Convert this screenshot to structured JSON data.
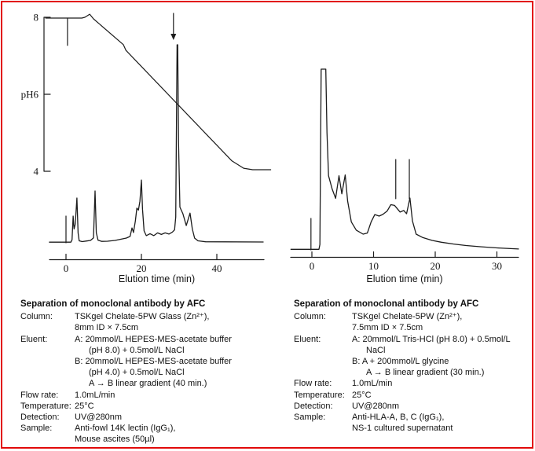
{
  "colors": {
    "frame_border": "#e20a0a",
    "trace": "#1c1c1c",
    "text": "#111111"
  },
  "chart_data": [
    {
      "name": "left-chromatogram",
      "type": "line",
      "xlabel": "Elution time (min)",
      "x_ticks": [
        0,
        20,
        40
      ],
      "x_range": [
        -4.4,
        52.5
      ],
      "grid": false,
      "uv_trace": {
        "name": "UV@280nm detector signal",
        "y_unit": "relative intensity (100 = tallest peak)",
        "ylim": [
          0,
          105
        ],
        "points": [
          [
            -4.4,
            0.3
          ],
          [
            1.3,
            0.3
          ],
          [
            1.6,
            1.5
          ],
          [
            1.9,
            13.5
          ],
          [
            2.15,
            7
          ],
          [
            2.45,
            9.5
          ],
          [
            2.9,
            22.6
          ],
          [
            3.2,
            5
          ],
          [
            3.5,
            1
          ],
          [
            4.3,
            0.6
          ],
          [
            5.5,
            0.9
          ],
          [
            6.5,
            1.2
          ],
          [
            7.3,
            2.5
          ],
          [
            7.7,
            26.2
          ],
          [
            8.05,
            5
          ],
          [
            8.5,
            1.3
          ],
          [
            9.5,
            0.7
          ],
          [
            11,
            0.8
          ],
          [
            13,
            1.2
          ],
          [
            14.5,
            1.8
          ],
          [
            16,
            2.4
          ],
          [
            17,
            3.2
          ],
          [
            17.5,
            7.5
          ],
          [
            17.9,
            5.2
          ],
          [
            18.4,
            11
          ],
          [
            18.8,
            17.5
          ],
          [
            19.2,
            16.5
          ],
          [
            19.6,
            21
          ],
          [
            20,
            31.7
          ],
          [
            20.3,
            17
          ],
          [
            20.7,
            6
          ],
          [
            21.3,
            3.6
          ],
          [
            22.3,
            4.6
          ],
          [
            23.3,
            3.6
          ],
          [
            24.3,
            5
          ],
          [
            25.3,
            4.2
          ],
          [
            26.3,
            5
          ],
          [
            27.3,
            4.4
          ],
          [
            28.2,
            5.4
          ],
          [
            28.8,
            6.5
          ],
          [
            29.1,
            13
          ],
          [
            29.45,
            100
          ],
          [
            29.62,
            100
          ],
          [
            29.85,
            50
          ],
          [
            30.2,
            18
          ],
          [
            31,
            14.7
          ],
          [
            31.9,
            8.7
          ],
          [
            32.9,
            15
          ],
          [
            33.5,
            7
          ],
          [
            34.1,
            2.4
          ],
          [
            35,
            1
          ],
          [
            37,
            0.5
          ],
          [
            52.3,
            0.4
          ]
        ]
      },
      "ph_trace": {
        "name": "pH gradient (pH 8 to pH 4, 40 min linear)",
        "points": [
          [
            -5.4,
            7.98
          ],
          [
            4.2,
            7.98
          ],
          [
            5.0,
            8.0
          ],
          [
            6.3,
            8.08
          ],
          [
            7.3,
            7.96
          ],
          [
            15.2,
            7.29
          ],
          [
            15.9,
            7.14
          ],
          [
            44,
            4.27
          ],
          [
            47.1,
            4.08
          ],
          [
            49.5,
            4.04
          ],
          [
            54.3,
            4.04
          ]
        ]
      },
      "ph_axis": {
        "title": "pH",
        "range": [
          4,
          8
        ],
        "ticks": [
          {
            "label": "8",
            "value": 8
          },
          {
            "label": "pH6",
            "value": 6
          },
          {
            "label": "4",
            "value": 4
          }
        ]
      },
      "injection_mark": {
        "t": 0,
        "height": 13.5
      },
      "ph_injection_tick": {
        "t": 0.4,
        "ph_from": 7.98,
        "ph_to": 7.27
      },
      "arrow_annotation": {
        "t": 28.5
      }
    },
    {
      "name": "right-chromatogram",
      "type": "line",
      "xlabel": "Elution time (min)",
      "x_ticks": [
        0,
        10,
        20,
        30
      ],
      "x_range": [
        -3.4,
        33.6
      ],
      "grid": false,
      "uv_trace": {
        "name": "UV@280nm detector signal",
        "y_unit": "relative intensity (100 = clipped top of first peak)",
        "ylim": [
          0,
          105
        ],
        "points": [
          [
            -3.4,
            0.3
          ],
          [
            1.15,
            0.3
          ],
          [
            1.3,
            3
          ],
          [
            1.5,
            100
          ],
          [
            2.25,
            100
          ],
          [
            2.45,
            65
          ],
          [
            2.7,
            41
          ],
          [
            3.3,
            33.5
          ],
          [
            3.85,
            28.5
          ],
          [
            4.4,
            41
          ],
          [
            4.85,
            31
          ],
          [
            5.4,
            41.5
          ],
          [
            5.8,
            27
          ],
          [
            6.4,
            15.5
          ],
          [
            7.2,
            10.9
          ],
          [
            8.3,
            8.7
          ],
          [
            9,
            9.3
          ],
          [
            9.6,
            15.5
          ],
          [
            10.2,
            19.5
          ],
          [
            10.9,
            18.7
          ],
          [
            11.5,
            19.6
          ],
          [
            12.2,
            21.5
          ],
          [
            12.8,
            25
          ],
          [
            13.4,
            24.6
          ],
          [
            14.3,
            20.9
          ],
          [
            14.9,
            21.8
          ],
          [
            15.35,
            20
          ],
          [
            15.9,
            28.7
          ],
          [
            16.3,
            16
          ],
          [
            16.9,
            8.7
          ],
          [
            18,
            6.8
          ],
          [
            19.5,
            5.2
          ],
          [
            21,
            4.2
          ],
          [
            23,
            3.2
          ],
          [
            25,
            2.4
          ],
          [
            27.5,
            1.7
          ],
          [
            30,
            1.1
          ],
          [
            33.5,
            0.5
          ]
        ]
      },
      "injection_mark": {
        "t": -0.15,
        "height": 17.4
      },
      "fraction_markers": [
        {
          "t": 13.6,
          "y_from": 28.3,
          "y_to": 50
        },
        {
          "t": 15.8,
          "y_from": 28.3,
          "y_to": 50
        }
      ]
    }
  ],
  "captions": {
    "left": {
      "title": "Separation of monoclonal antibody by AFC",
      "rows": [
        {
          "label": "Column:",
          "lines": [
            {
              "text": "TSKgel Chelate-5PW Glass (Zn²⁺),",
              "indent": 0
            },
            {
              "text": "8mm ID × 7.5cm",
              "indent": 0
            }
          ]
        },
        {
          "label": "Eluent:",
          "lines": [
            {
              "text": "A: 20mmol/L HEPES-MES-acetate buffer",
              "indent": 0
            },
            {
              "text": "(pH 8.0) + 0.5mol/L NaCl",
              "indent": 1
            },
            {
              "text": "B: 20mmol/L HEPES-MES-acetate buffer",
              "indent": 0
            },
            {
              "text": "(pH 4.0) + 0.5mol/L NaCl",
              "indent": 1
            },
            {
              "text": "A → B linear gradient (40 min.)",
              "indent": 1
            }
          ]
        },
        {
          "label": "Flow rate:",
          "lines": [
            {
              "text": "1.0mL/min",
              "indent": 0
            }
          ]
        },
        {
          "label": "Temperature:",
          "lines": [
            {
              "text": "25°C",
              "indent": 0
            }
          ]
        },
        {
          "label": "Detection:",
          "lines": [
            {
              "text": "UV@280nm",
              "indent": 0
            }
          ]
        },
        {
          "label": "Sample:",
          "lines": [
            {
              "text": "Anti-fowl 14K lectin (IgG₁),",
              "indent": 0
            },
            {
              "text": "Mouse ascites (50µl)",
              "indent": 0
            }
          ]
        }
      ]
    },
    "right": {
      "title": "Separation of monoclonal antibody by AFC",
      "rows": [
        {
          "label": "Column:",
          "lines": [
            {
              "text": "TSKgel Chelate-5PW (Zn²⁺),",
              "indent": 0
            },
            {
              "text": "7.5mm ID × 7.5cm",
              "indent": 0
            }
          ]
        },
        {
          "label": "Eluent:",
          "lines": [
            {
              "text": "A: 20mmol/L Tris-HCl (pH 8.0) + 0.5mol/L",
              "indent": 0
            },
            {
              "text": "NaCl",
              "indent": 1
            },
            {
              "text": "B: A + 200mmol/L glycine",
              "indent": 0
            },
            {
              "text": "A → B linear gradient (30 min.)",
              "indent": 1
            }
          ]
        },
        {
          "label": "Flow rate:",
          "lines": [
            {
              "text": "1.0mL/min",
              "indent": 0
            }
          ]
        },
        {
          "label": "Temperature:",
          "lines": [
            {
              "text": "25°C",
              "indent": 0
            }
          ]
        },
        {
          "label": "Detection:",
          "lines": [
            {
              "text": "UV@280nm",
              "indent": 0
            }
          ]
        },
        {
          "label": "Sample:",
          "lines": [
            {
              "text": "Anti-HLA-A, B, C (IgG₁),",
              "indent": 0
            },
            {
              "text": "NS-1 cultured supernatant",
              "indent": 0
            }
          ]
        }
      ]
    }
  }
}
